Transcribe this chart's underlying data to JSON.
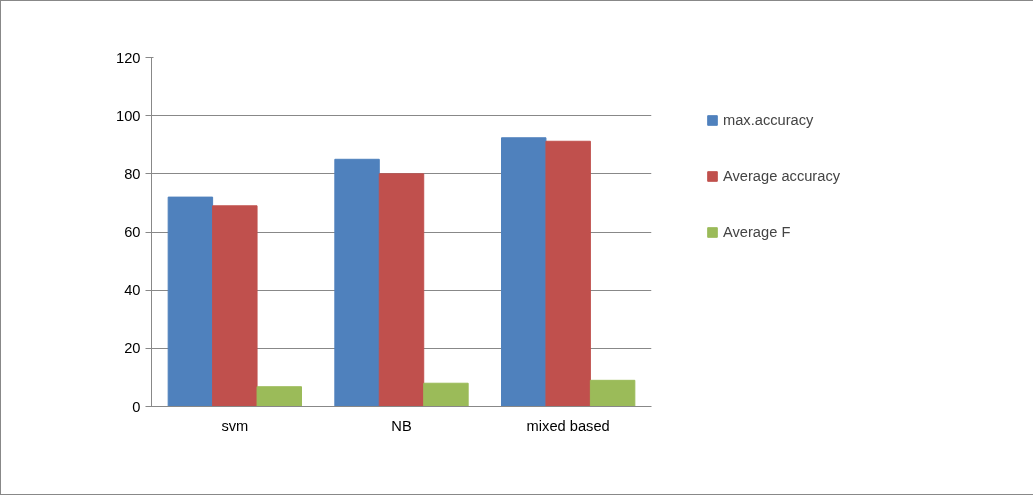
{
  "chart_data": {
    "type": "bar",
    "categories": [
      "svm",
      "NB",
      "mixed based"
    ],
    "series": [
      {
        "name": "max.accuracy",
        "color": "#4f81bd",
        "values": [
          72,
          85,
          92.4
        ]
      },
      {
        "name": "Average accuracy",
        "color": "#c0504d",
        "values": [
          69,
          80,
          91.2
        ]
      },
      {
        "name": "Average F",
        "color": "#9bbb59",
        "values": [
          6.8,
          8,
          9
        ]
      }
    ],
    "ylim": [
      0,
      120
    ],
    "yticks": [
      0,
      20,
      40,
      60,
      80,
      100,
      120
    ],
    "grid": "y",
    "legend": "right"
  }
}
